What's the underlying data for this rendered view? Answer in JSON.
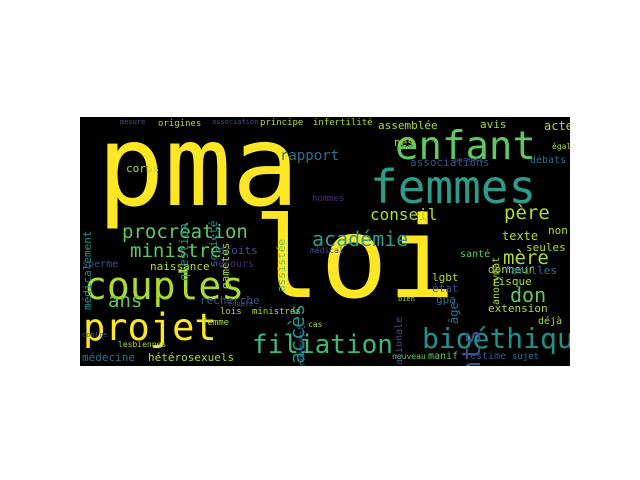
{
  "wordcloud": {
    "background": "#000000",
    "palette": {
      "yellow": "#fde725",
      "lime": "#addc30",
      "green": "#5ec962",
      "teal": "#21918c",
      "blue": "#2c728e",
      "indigo": "#3b528b",
      "purple": "#472d7b",
      "dark": "#440154"
    },
    "words": [
      {
        "id": "pma",
        "text": "pma",
        "size": "xxl",
        "orientation": "horizontal",
        "color": "#fde725"
      },
      {
        "id": "loi",
        "text": "loi",
        "size": "xxl",
        "orientation": "horizontal",
        "color": "#fde725"
      },
      {
        "id": "femmes",
        "text": "femmes",
        "size": "xl",
        "orientation": "horizontal",
        "color": "#2c9b89"
      },
      {
        "id": "enfant",
        "text": "enfant",
        "size": "l",
        "orientation": "horizontal",
        "color": "#5ec962"
      },
      {
        "id": "couples",
        "text": "couples",
        "size": "l",
        "orientation": "horizontal",
        "color": "#addc30"
      },
      {
        "id": "projet",
        "text": "projet",
        "size": "l",
        "orientation": "horizontal",
        "color": "#fde725"
      },
      {
        "id": "bioethique",
        "text": "bioéthique",
        "size": "l",
        "orientation": "horizontal",
        "color": "#21918c"
      },
      {
        "id": "filiation",
        "text": "filiation",
        "size": "m",
        "orientation": "horizontal",
        "color": "#3aba76"
      },
      {
        "id": "enfants",
        "text": "enfants",
        "size": "m",
        "orientation": "vertical",
        "color": "#3b528b"
      },
      {
        "id": "acces",
        "text": "accès",
        "size": "m",
        "orientation": "vertical",
        "color": "#21918c"
      },
      {
        "id": "academie",
        "text": "académie",
        "size": "m",
        "orientation": "horizontal",
        "color": "#2c9b89"
      },
      {
        "id": "procreation",
        "text": "procréation",
        "size": "m",
        "orientation": "horizontal",
        "color": "#5ec962"
      },
      {
        "id": "ministre",
        "text": "ministre",
        "size": "m",
        "orientation": "horizontal",
        "color": "#5ec962"
      },
      {
        "id": "ans",
        "text": "ans",
        "size": "m",
        "orientation": "horizontal",
        "color": "#5ec962"
      },
      {
        "id": "don",
        "text": "don",
        "size": "m",
        "orientation": "horizontal",
        "color": "#5ec962"
      },
      {
        "id": "mere",
        "text": "mère",
        "size": "m",
        "orientation": "horizontal",
        "color": "#addc30"
      },
      {
        "id": "pere",
        "text": "père",
        "size": "m",
        "orientation": "horizontal",
        "color": "#addc30"
      },
      {
        "id": "conseil",
        "text": "conseil",
        "size": "m",
        "orientation": "horizontal",
        "color": "#addc30"
      },
      {
        "id": "rapport",
        "text": "rapport",
        "size": "s",
        "orientation": "horizontal",
        "color": "#2c728e"
      },
      {
        "id": "question",
        "text": "question",
        "size": "s",
        "orientation": "vertical",
        "color": "#21918c"
      },
      {
        "id": "medicalement",
        "text": "médicalement",
        "size": "s",
        "orientation": "vertical",
        "color": "#21918c"
      },
      {
        "id": "texte",
        "text": "texte",
        "size": "s",
        "orientation": "horizontal",
        "color": "#addc30"
      },
      {
        "id": "age",
        "text": "âge",
        "size": "s",
        "orientation": "vertical",
        "color": "#2c728e"
      },
      {
        "id": "recherche",
        "text": "recherche",
        "size": "s",
        "orientation": "horizontal",
        "color": "#3b528b"
      },
      {
        "id": "medecine",
        "text": "médecine",
        "size": "s",
        "orientation": "horizontal",
        "color": "#2c728e"
      },
      {
        "id": "heterosexuels",
        "text": "hétérosexuels",
        "size": "s",
        "orientation": "horizontal",
        "color": "#addc30"
      },
      {
        "id": "nouveau",
        "text": "nouveau",
        "size": "xs",
        "orientation": "horizontal",
        "color": "#5ec962"
      },
      {
        "id": "manif",
        "text": "manif",
        "size": "xs",
        "orientation": "horizontal",
        "color": "#5ec962"
      },
      {
        "id": "estime",
        "text": "estime",
        "size": "xs",
        "orientation": "horizontal",
        "color": "#3b528b"
      },
      {
        "id": "sujet",
        "text": "sujet",
        "size": "xs",
        "orientation": "horizontal",
        "color": "#2c728e"
      },
      {
        "id": "extension",
        "text": "extension",
        "size": "s",
        "orientation": "horizontal",
        "color": "#addc30"
      },
      {
        "id": "risque",
        "text": "risque",
        "size": "s",
        "orientation": "horizontal",
        "color": "#addc30"
      },
      {
        "id": "donneur",
        "text": "donneur",
        "size": "s",
        "orientation": "horizontal",
        "color": "#addc30"
      },
      {
        "id": "familles",
        "text": "familles",
        "size": "s",
        "orientation": "horizontal",
        "color": "#2c728e"
      },
      {
        "id": "seules",
        "text": "seules",
        "size": "s",
        "orientation": "horizontal",
        "color": "#addc30"
      },
      {
        "id": "non",
        "text": "non",
        "size": "s",
        "orientation": "horizontal",
        "color": "#addc30"
      },
      {
        "id": "deja",
        "text": "déjà",
        "size": "xs",
        "orientation": "horizontal",
        "color": "#addc30"
      },
      {
        "id": "lgbt",
        "text": "lgbt",
        "size": "s",
        "orientation": "horizontal",
        "color": "#addc30"
      },
      {
        "id": "gpa",
        "text": "gpa",
        "size": "s",
        "orientation": "horizontal",
        "color": "#2c728e"
      },
      {
        "id": "etat",
        "text": "état",
        "size": "s",
        "orientation": "horizontal",
        "color": "#3b528b"
      },
      {
        "id": "sante",
        "text": "santé",
        "size": "s",
        "orientation": "horizontal",
        "color": "#5ec962"
      },
      {
        "id": "anonymat",
        "text": "anonymat",
        "size": "xs",
        "orientation": "vertical",
        "color": "#addc30"
      },
      {
        "id": "associations",
        "text": "associations",
        "size": "s",
        "orientation": "horizontal",
        "color": "#3b528b"
      },
      {
        "id": "debats",
        "text": "débats",
        "size": "xs",
        "orientation": "horizontal",
        "color": "#2c728e"
      },
      {
        "id": "egalite",
        "text": "égalité",
        "size": "xs",
        "orientation": "horizontal",
        "color": "#addc30"
      },
      {
        "id": "acte",
        "text": "acte",
        "size": "s",
        "orientation": "horizontal",
        "color": "#addc30"
      },
      {
        "id": "avis",
        "text": "avis",
        "size": "s",
        "orientation": "horizontal",
        "color": "#addc30"
      },
      {
        "id": "nes",
        "text": "nés",
        "size": "s",
        "orientation": "horizontal",
        "color": "#addc30"
      },
      {
        "id": "assemblee",
        "text": "assemblée",
        "size": "s",
        "orientation": "horizontal",
        "color": "#addc30"
      },
      {
        "id": "principe",
        "text": "principe",
        "size": "xs",
        "orientation": "horizontal",
        "color": "#addc30"
      },
      {
        "id": "infertilite",
        "text": "infertilité",
        "size": "xs",
        "orientation": "horizontal",
        "color": "#addc30"
      },
      {
        "id": "association",
        "text": "association",
        "size": "xs",
        "orientation": "horizontal",
        "color": "#3b528b"
      },
      {
        "id": "origines",
        "text": "origines",
        "size": "xs",
        "orientation": "horizontal",
        "color": "#addc30"
      },
      {
        "id": "societe",
        "text": "société",
        "size": "s",
        "orientation": "vertical",
        "color": "#21918c"
      },
      {
        "id": "corps",
        "text": "corps",
        "size": "s",
        "orientation": "horizontal",
        "color": "#addc30"
      },
      {
        "id": "gametes",
        "text": "gamètes",
        "size": "s",
        "orientation": "vertical",
        "color": "#addc30"
      },
      {
        "id": "assistee",
        "text": "assistée",
        "size": "s",
        "orientation": "vertical",
        "color": "#5ec962"
      },
      {
        "id": "droits",
        "text": "droits",
        "size": "s",
        "orientation": "horizontal",
        "color": "#3b528b"
      },
      {
        "id": "recours",
        "text": "recours",
        "size": "s",
        "orientation": "horizontal",
        "color": "#472d7b"
      },
      {
        "id": "naissance",
        "text": "naissance",
        "size": "s",
        "orientation": "horizontal",
        "color": "#addc30"
      },
      {
        "id": "sperme",
        "text": "sperme",
        "size": "s",
        "orientation": "horizontal",
        "color": "#3b528b"
      },
      {
        "id": "lois",
        "text": "lois",
        "size": "xs",
        "orientation": "horizontal",
        "color": "#addc30"
      },
      {
        "id": "ministres",
        "text": "ministres",
        "size": "xs",
        "orientation": "horizontal",
        "color": "#addc30"
      },
      {
        "id": "femme",
        "text": "femme",
        "size": "xs",
        "orientation": "horizontal",
        "color": "#addc30"
      },
      {
        "id": "lesbiennes",
        "text": "lesbiennes",
        "size": "xs",
        "orientation": "horizontal",
        "color": "#addc30"
      },
      {
        "id": "couple",
        "text": "couple",
        "size": "xs",
        "orientation": "horizontal",
        "color": "#3b528b"
      },
      {
        "id": "contre",
        "text": "contre",
        "size": "xs",
        "orientation": "horizontal",
        "color": "#3b528b"
      },
      {
        "id": "gouvernement",
        "text": "gouvernement",
        "size": "s",
        "orientation": "vertical",
        "color": "#3b528b"
      },
      {
        "id": "nationale",
        "text": "nationale",
        "size": "s",
        "orientation": "vertical",
        "color": "#3b528b"
      },
      {
        "id": "hommes",
        "text": "hommes",
        "size": "xs",
        "orientation": "horizontal",
        "color": "#472d7b"
      },
      {
        "id": "mesure",
        "text": "mesure",
        "size": "xs",
        "orientation": "horizontal",
        "color": "#3b528b"
      },
      {
        "id": "cas",
        "text": "cas",
        "size": "xs",
        "orientation": "horizontal",
        "color": "#addc30"
      },
      {
        "id": "bien",
        "text": "bien",
        "size": "xs",
        "orientation": "horizontal",
        "color": "#addc30"
      },
      {
        "id": "medical",
        "text": "médical",
        "size": "xs",
        "orientation": "horizontal",
        "color": "#3b528b"
      },
      {
        "id": "parents",
        "text": "parents",
        "size": "xs",
        "orientation": "horizontal",
        "color": "#3b528b"
      }
    ]
  }
}
